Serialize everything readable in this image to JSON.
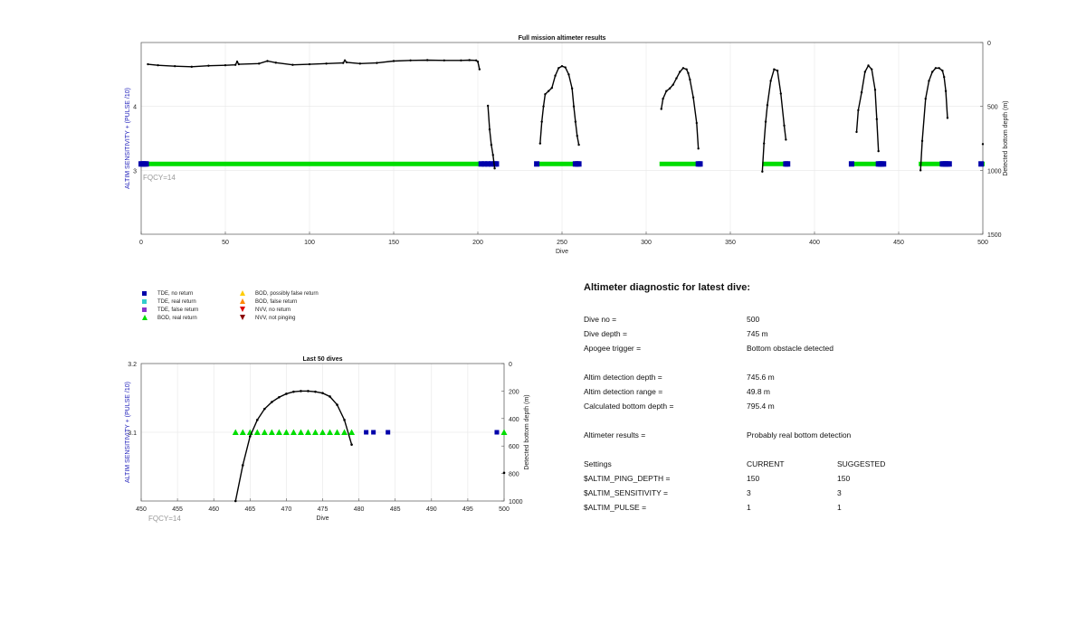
{
  "chart_data": [
    {
      "type": "line",
      "title": "Full mission altimeter results",
      "xlabel": "Dive",
      "ylabel_left": "ALTIM SENSITIVITY + (PULSE /10)",
      "ylabel_right": "Detected bottom depth (m)",
      "xlim": [
        0,
        500
      ],
      "ylim_left": [
        2,
        5
      ],
      "ylim_right": [
        1500,
        0
      ],
      "xticks": [
        "0",
        "50",
        "100",
        "150",
        "200",
        "250",
        "300",
        "350",
        "400",
        "450",
        "500"
      ],
      "yticks_left": [
        "3",
        "4"
      ],
      "yticks_right": [
        "0",
        "500",
        "1000",
        "1500"
      ],
      "grid": true,
      "annotation": "FQCY=14",
      "depth_series": {
        "name": "Detected bottom depth",
        "segments": [
          {
            "x": [
              4,
              10,
              20,
              30,
              40,
              50,
              56,
              57,
              58,
              70,
              75,
              80,
              90,
              100,
              110,
              120,
              121,
              122,
              130,
              140,
              150,
              160,
              170,
              180,
              190,
              195,
              199,
              200,
              201
            ],
            "y": [
              170,
              178,
              185,
              190,
              182,
              178,
              175,
              150,
              170,
              165,
              145,
              158,
              175,
              170,
              165,
              160,
              140,
              155,
              165,
              160,
              145,
              140,
              138,
              140,
              140,
              138,
              140,
              150,
              210
            ]
          },
          {
            "x": [
              206,
              207,
              208,
              209,
              210
            ],
            "y": [
              495,
              680,
              800,
              880,
              985
            ]
          },
          {
            "x": [
              237,
              238,
              239,
              240,
              242,
              244,
              246,
              248,
              250,
              252,
              254,
              256,
              257,
              258,
              259,
              260
            ],
            "y": [
              790,
              620,
              500,
              405,
              380,
              355,
              260,
              200,
              185,
              195,
              250,
              360,
              500,
              620,
              730,
              800
            ]
          },
          {
            "x": [
              309,
              310,
              312,
              314,
              316,
              318,
              320,
              322,
              324,
              325,
              326,
              328,
              330,
              331
            ],
            "y": [
              520,
              440,
              380,
              360,
              330,
              280,
              230,
              200,
              210,
              240,
              290,
              430,
              630,
              830
            ]
          },
          {
            "x": [
              369,
              370,
              371,
              372,
              374,
              376,
              378,
              380,
              382,
              383
            ],
            "y": [
              1010,
              790,
              620,
              490,
              300,
              210,
              220,
              400,
              650,
              760
            ]
          },
          {
            "x": [
              425,
              426,
              428,
              430,
              432,
              434,
              436,
              437,
              438
            ],
            "y": [
              700,
              530,
              390,
              230,
              180,
              210,
              370,
              600,
              850
            ]
          },
          {
            "x": [
              463,
              464,
              466,
              468,
              470,
              472,
              474,
              476,
              477,
              478,
              479
            ],
            "y": [
              1000,
              770,
              440,
              300,
              230,
              200,
              200,
              220,
              270,
              380,
              590
            ]
          },
          {
            "x": [
              500
            ],
            "y": [
              795
            ]
          }
        ]
      },
      "tde_no_return_x": [
        0,
        1,
        2,
        3,
        202,
        204,
        206,
        208,
        210,
        211,
        235,
        258,
        259,
        260,
        331,
        332,
        383,
        384,
        422,
        438,
        439,
        440,
        441,
        476,
        477,
        478,
        479,
        480,
        499
      ],
      "bod_real_return_x_ranges": [
        [
          4,
          201
        ],
        [
          207,
          208
        ],
        [
          237,
          257
        ],
        [
          309,
          330
        ],
        [
          370,
          381
        ],
        [
          424,
          437
        ],
        [
          463,
          475
        ],
        [
          500,
          500
        ]
      ]
    },
    {
      "type": "line",
      "title": "Last 50 dives",
      "xlabel": "Dive",
      "ylabel_left": "ALTIM SENSITIVITY + (PULSE /10)",
      "ylabel_right": "Detected bottom depth (m)",
      "xlim": [
        450,
        500
      ],
      "ylim_left": [
        3.0,
        3.2
      ],
      "ylim_right": [
        1000,
        0
      ],
      "xticks": [
        "450",
        "455",
        "460",
        "465",
        "470",
        "475",
        "480",
        "485",
        "490",
        "495",
        "500"
      ],
      "yticks_left": [
        "3.1",
        "3.2"
      ],
      "yticks_right": [
        "0",
        "200",
        "400",
        "600",
        "800",
        "1000"
      ],
      "grid": true,
      "annotation": "FQCY=14",
      "depth_series": {
        "name": "Detected bottom depth",
        "segments": [
          {
            "x": [
              463,
              464,
              465,
              466,
              467,
              468,
              469,
              470,
              471,
              472,
              473,
              474,
              475,
              476,
              477,
              478,
              479
            ],
            "y": [
              1000,
              740,
              530,
              410,
              330,
              280,
              245,
              220,
              205,
              200,
              200,
              205,
              215,
              240,
              300,
              410,
              590
            ]
          },
          {
            "x": [
              500
            ],
            "y": [
              795
            ]
          }
        ]
      },
      "tde_no_return_x": [
        481,
        482,
        484,
        499
      ],
      "bod_real_return_x": [
        463,
        464,
        465,
        466,
        467,
        468,
        469,
        470,
        471,
        472,
        473,
        474,
        475,
        476,
        477,
        478,
        479,
        500
      ]
    }
  ],
  "legend": [
    {
      "label": "TDE, no return",
      "symbol": "square",
      "color": "#0000aa"
    },
    {
      "label": "TDE, real return",
      "symbol": "square",
      "color": "#33cccc"
    },
    {
      "label": "TDE, false return",
      "symbol": "square",
      "color": "#8833cc"
    },
    {
      "label": "BOD, real return",
      "symbol": "triangle-up",
      "color": "#00dd00"
    },
    {
      "label": "BOD, possibly false return",
      "symbol": "triangle-up",
      "color": "#ffcc00"
    },
    {
      "label": "BOD, false return",
      "symbol": "triangle-up",
      "color": "#ff8800"
    },
    {
      "label": "NVV, no return",
      "symbol": "triangle-down",
      "color": "#dd0000"
    },
    {
      "label": "NVV, not pinging",
      "symbol": "triangle-down",
      "color": "#8b0000"
    }
  ],
  "diagnostic": {
    "title": "Altimeter diagnostic for latest dive:",
    "dive_no_label": "Dive no =",
    "dive_no_value": "500",
    "dive_depth_label": "Dive depth =",
    "dive_depth_value": "745 m",
    "apogee_label": "Apogee trigger =",
    "apogee_value": "Bottom obstacle detected",
    "altim_det_depth_label": "Altim detection depth =",
    "altim_det_depth_value": "745.6 m",
    "altim_det_range_label": "Altim detection range =",
    "altim_det_range_value": "49.8 m",
    "calc_bottom_label": "Calculated bottom depth =",
    "calc_bottom_value": "795.4 m",
    "results_label": "Altimeter results =",
    "results_value": "Probably real bottom detection",
    "settings_header": "Settings",
    "current_header": "CURRENT",
    "suggested_header": "SUGGESTED",
    "ping_depth_label": "$ALTIM_PING_DEPTH =",
    "ping_depth_current": "150",
    "ping_depth_suggested": "150",
    "sensitivity_label": "$ALTIM_SENSITIVITY =",
    "sensitivity_current": "3",
    "sensitivity_suggested": "3",
    "pulse_label": "$ALTIM_PULSE =",
    "pulse_current": "1",
    "pulse_suggested": "1"
  }
}
